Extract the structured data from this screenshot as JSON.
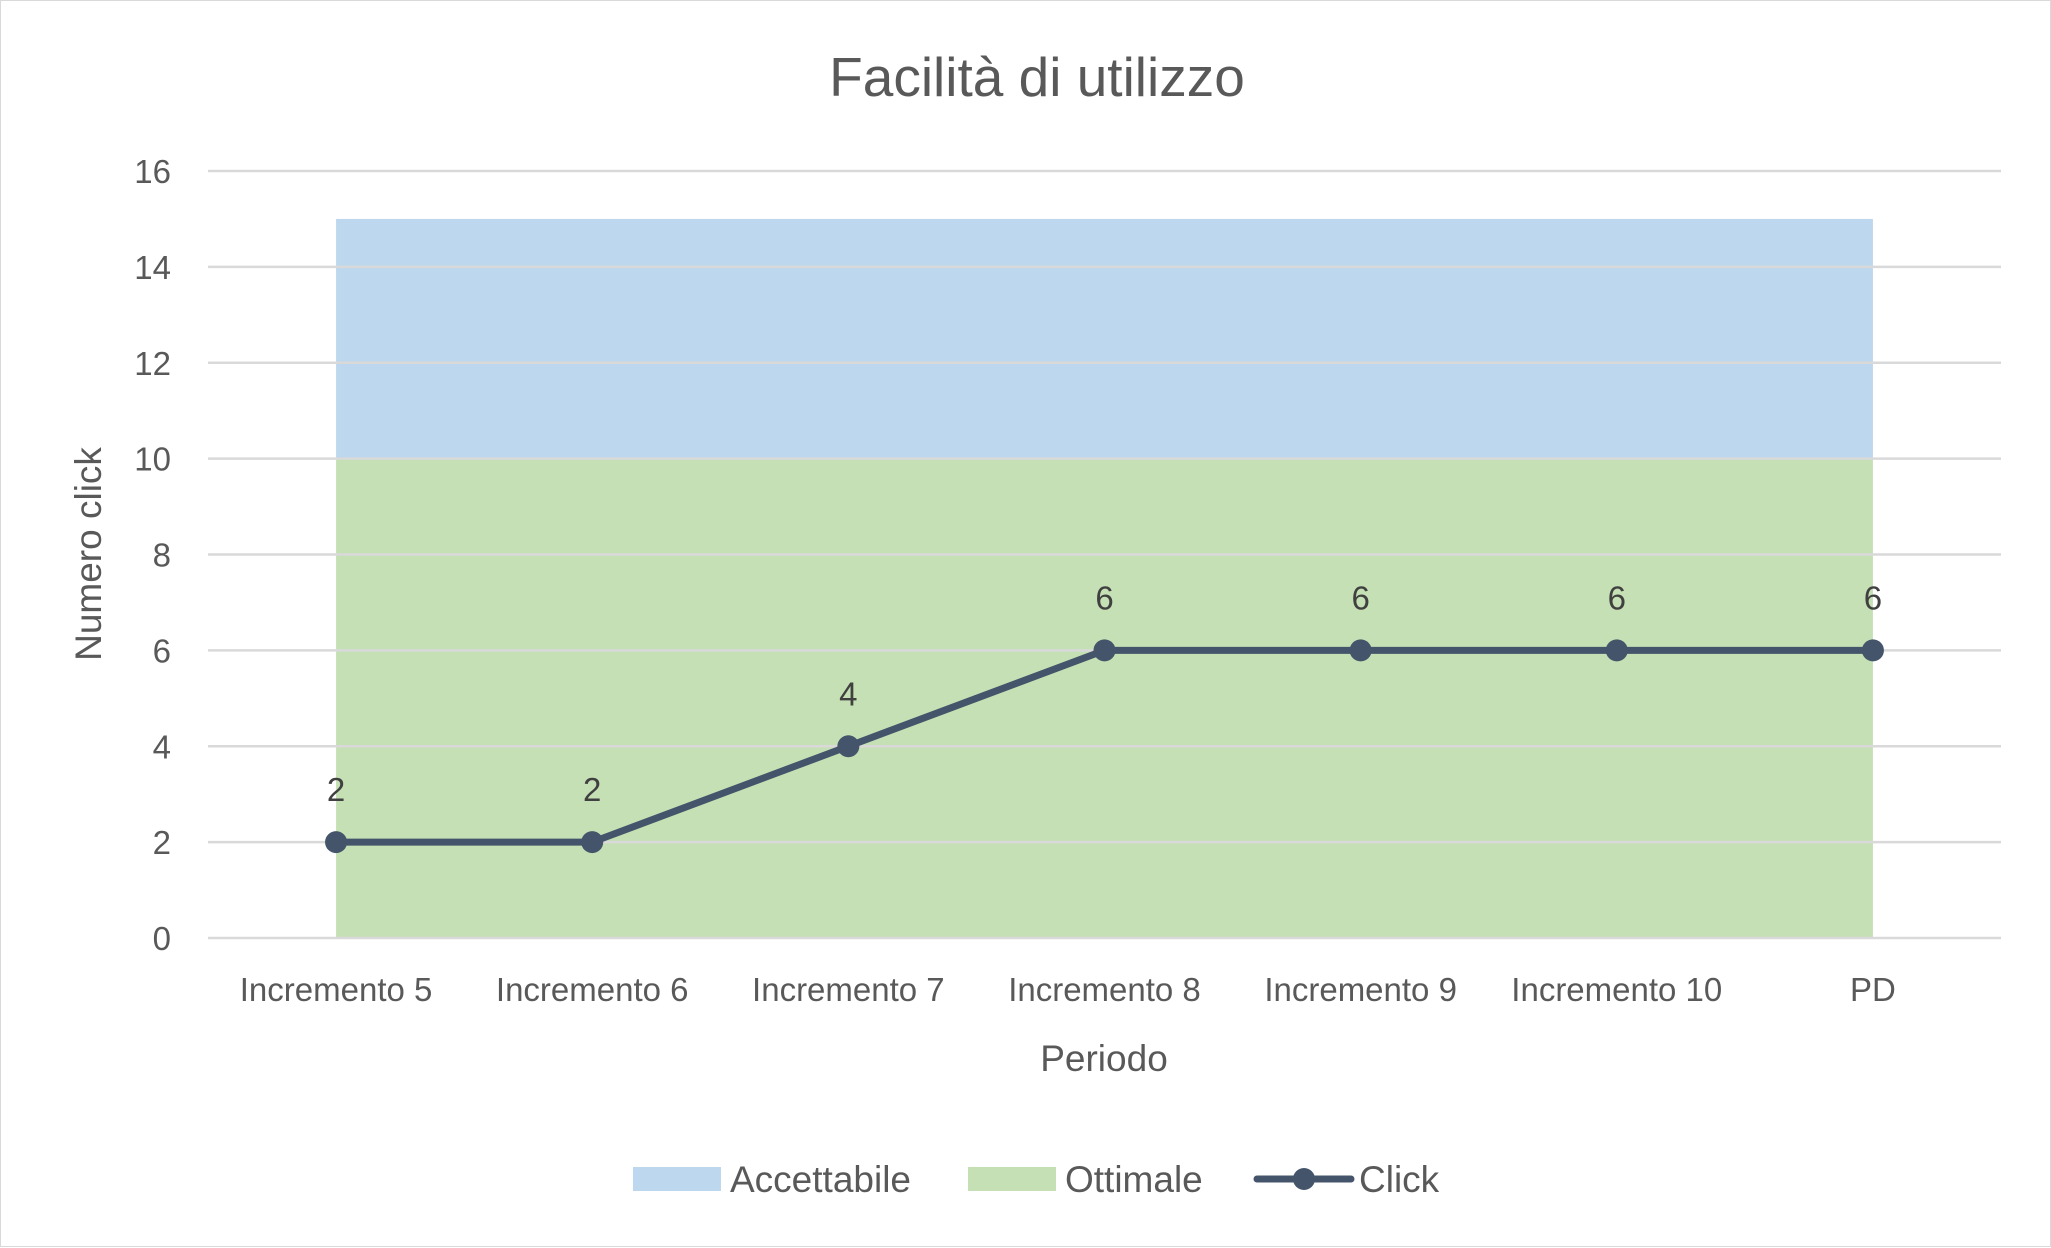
{
  "chart_data": {
    "type": "line",
    "title": "Facilità di utilizzo",
    "xlabel": "Periodo",
    "ylabel": "Numero click",
    "categories": [
      "Incremento 5",
      "Incremento 6",
      "Incremento 7",
      "Incremento 8",
      "Incremento 9",
      "Incremento 10",
      "PD"
    ],
    "ylim": [
      0,
      16
    ],
    "yticks": [
      0,
      2,
      4,
      6,
      8,
      10,
      12,
      14,
      16
    ],
    "grid": true,
    "legend_position": "bottom",
    "bands": [
      {
        "name": "Ottimale",
        "from": 0,
        "to": 10,
        "color": "#c5e0b4"
      },
      {
        "name": "Accettabile",
        "from": 10,
        "to": 15,
        "color": "#bdd7ee"
      }
    ],
    "series": [
      {
        "name": "Click",
        "values": [
          2,
          2,
          4,
          6,
          6,
          6,
          6
        ],
        "color": "#44546a",
        "data_labels": true
      }
    ],
    "legend": [
      "Accettabile",
      "Ottimale",
      "Click"
    ]
  }
}
